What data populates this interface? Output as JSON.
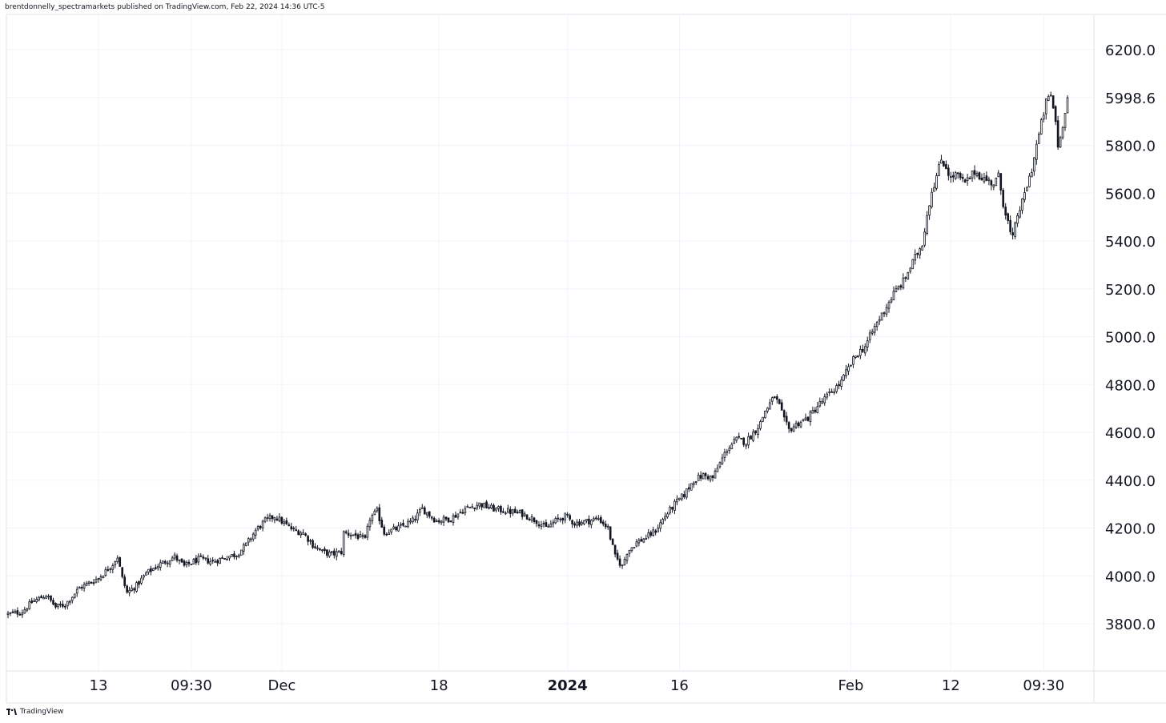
{
  "header": {
    "attribution": "brentdonnelly_spectramarkets published on TradingView.com, Feb 22, 2024 14:36 UTC-5"
  },
  "footer": {
    "logo_text": "TradingView"
  },
  "chart_data": {
    "type": "candlestick",
    "title": "",
    "xlabel": "",
    "ylabel": "",
    "ylim": [
      3600,
      6300
    ],
    "grid": true,
    "last_price": 5998.6,
    "y_ticks": [
      "6200.0",
      "5800.0",
      "5600.0",
      "5400.0",
      "5200.0",
      "5000.0",
      "4800.0",
      "4600.0",
      "4400.0",
      "4200.0",
      "4000.0",
      "3800.0"
    ],
    "y_tick_values": [
      6200,
      5800,
      5600,
      5400,
      5200,
      5000,
      4800,
      4600,
      4400,
      4200,
      4000,
      3800
    ],
    "x_ticks": [
      {
        "label": "13",
        "index": 38,
        "bold": false
      },
      {
        "label": "09:30",
        "index": 77,
        "bold": false
      },
      {
        "label": "Dec",
        "index": 115,
        "bold": false
      },
      {
        "label": "18",
        "index": 181,
        "bold": false
      },
      {
        "label": "2024",
        "index": 235,
        "bold": true
      },
      {
        "label": "16",
        "index": 282,
        "bold": false
      },
      {
        "label": "Feb",
        "index": 354,
        "bold": false
      },
      {
        "label": "12",
        "index": 396,
        "bold": false
      },
      {
        "label": "09:30",
        "index": 435,
        "bold": false
      }
    ],
    "close_path": [
      [
        0,
        3840
      ],
      [
        6,
        3850
      ],
      [
        10,
        3890
      ],
      [
        16,
        3920
      ],
      [
        20,
        3870
      ],
      [
        24,
        3880
      ],
      [
        30,
        3950
      ],
      [
        38,
        3990
      ],
      [
        44,
        4050
      ],
      [
        46,
        4080
      ],
      [
        48,
        3990
      ],
      [
        50,
        3930
      ],
      [
        54,
        3960
      ],
      [
        58,
        4010
      ],
      [
        64,
        4050
      ],
      [
        70,
        4080
      ],
      [
        74,
        4040
      ],
      [
        80,
        4070
      ],
      [
        86,
        4060
      ],
      [
        92,
        4080
      ],
      [
        96,
        4090
      ],
      [
        100,
        4130
      ],
      [
        104,
        4190
      ],
      [
        108,
        4230
      ],
      [
        112,
        4250
      ],
      [
        116,
        4220
      ],
      [
        120,
        4190
      ],
      [
        124,
        4180
      ],
      [
        128,
        4130
      ],
      [
        132,
        4100
      ],
      [
        136,
        4090
      ],
      [
        140,
        4100
      ],
      [
        141,
        4180
      ],
      [
        146,
        4170
      ],
      [
        150,
        4150
      ],
      [
        152,
        4240
      ],
      [
        155,
        4270
      ],
      [
        158,
        4180
      ],
      [
        164,
        4200
      ],
      [
        170,
        4230
      ],
      [
        174,
        4280
      ],
      [
        180,
        4230
      ],
      [
        186,
        4240
      ],
      [
        192,
        4280
      ],
      [
        198,
        4300
      ],
      [
        204,
        4280
      ],
      [
        210,
        4270
      ],
      [
        216,
        4260
      ],
      [
        222,
        4230
      ],
      [
        226,
        4200
      ],
      [
        230,
        4230
      ],
      [
        234,
        4250
      ],
      [
        238,
        4220
      ],
      [
        244,
        4230
      ],
      [
        248,
        4240
      ],
      [
        252,
        4200
      ],
      [
        255,
        4080
      ],
      [
        258,
        4040
      ],
      [
        260,
        4100
      ],
      [
        264,
        4140
      ],
      [
        268,
        4160
      ],
      [
        272,
        4190
      ],
      [
        276,
        4250
      ],
      [
        280,
        4300
      ],
      [
        284,
        4340
      ],
      [
        288,
        4400
      ],
      [
        292,
        4420
      ],
      [
        296,
        4410
      ],
      [
        298,
        4450
      ],
      [
        302,
        4530
      ],
      [
        306,
        4570
      ],
      [
        310,
        4560
      ],
      [
        314,
        4610
      ],
      [
        316,
        4640
      ],
      [
        318,
        4690
      ],
      [
        322,
        4750
      ],
      [
        324,
        4710
      ],
      [
        326,
        4650
      ],
      [
        328,
        4610
      ],
      [
        332,
        4640
      ],
      [
        336,
        4660
      ],
      [
        340,
        4710
      ],
      [
        344,
        4750
      ],
      [
        348,
        4790
      ],
      [
        350,
        4810
      ],
      [
        352,
        4850
      ],
      [
        356,
        4920
      ],
      [
        360,
        4960
      ],
      [
        364,
        5040
      ],
      [
        368,
        5110
      ],
      [
        372,
        5180
      ],
      [
        376,
        5230
      ],
      [
        380,
        5310
      ],
      [
        384,
        5390
      ],
      [
        386,
        5510
      ],
      [
        388,
        5610
      ],
      [
        390,
        5670
      ],
      [
        392,
        5740
      ],
      [
        394,
        5710
      ],
      [
        396,
        5660
      ],
      [
        398,
        5680
      ],
      [
        402,
        5640
      ],
      [
        406,
        5690
      ],
      [
        410,
        5660
      ],
      [
        414,
        5640
      ],
      [
        416,
        5670
      ],
      [
        418,
        5560
      ],
      [
        420,
        5480
      ],
      [
        421,
        5430
      ],
      [
        422,
        5410
      ],
      [
        424,
        5510
      ],
      [
        426,
        5560
      ],
      [
        428,
        5630
      ],
      [
        430,
        5700
      ],
      [
        432,
        5800
      ],
      [
        434,
        5890
      ],
      [
        436,
        5980
      ],
      [
        438,
        6010
      ],
      [
        440,
        5900
      ],
      [
        441,
        5800
      ],
      [
        442,
        5830
      ],
      [
        444,
        5950
      ],
      [
        445,
        5998.6
      ]
    ]
  }
}
